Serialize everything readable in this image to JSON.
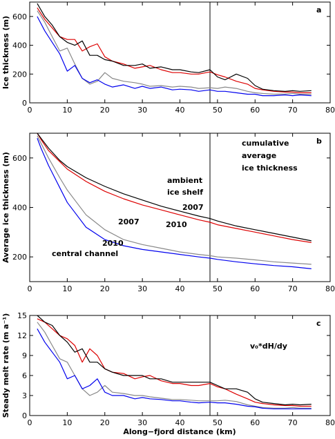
{
  "xlabel": "Along−fjord distance (km)",
  "colors": {
    "black_2007_ambient": "#000000",
    "red_2010_ambient": "#dd0000",
    "gray_2007_channel": "#888888",
    "blue_2010_channel": "#0000ee"
  },
  "chart_data": [
    {
      "type": "line",
      "panel_label": "a",
      "ylabel": "Ice thickness (m)",
      "xlim": [
        0,
        80
      ],
      "ylim": [
        0,
        700
      ],
      "xticks": [
        "0",
        "10",
        "20",
        "30",
        "40",
        "50",
        "60",
        "70",
        "80"
      ],
      "yticks": [
        "0",
        "200",
        "400",
        "600"
      ],
      "ytick_values": [
        0,
        200,
        400,
        600
      ],
      "vline_x": 48,
      "series": [
        {
          "color": "#000000",
          "x": [
            2,
            4,
            6,
            8,
            10,
            12,
            14,
            16,
            18,
            20,
            22,
            25,
            28,
            30,
            32,
            35,
            38,
            40,
            43,
            45,
            48,
            50,
            52,
            55,
            58,
            60,
            62,
            65,
            68,
            70,
            72,
            75
          ],
          "y": [
            690,
            600,
            540,
            460,
            420,
            400,
            430,
            330,
            330,
            300,
            290,
            260,
            260,
            270,
            240,
            250,
            230,
            230,
            215,
            210,
            230,
            180,
            160,
            200,
            170,
            120,
            95,
            85,
            80,
            85,
            80,
            85
          ]
        },
        {
          "color": "#dd0000",
          "x": [
            2,
            4,
            6,
            8,
            10,
            12,
            14,
            16,
            18,
            20,
            22,
            25,
            28,
            30,
            32,
            35,
            38,
            40,
            43,
            45,
            48,
            50,
            52,
            55,
            58,
            60,
            62,
            65,
            68,
            70,
            72,
            75
          ],
          "y": [
            660,
            580,
            520,
            460,
            440,
            440,
            360,
            390,
            410,
            320,
            290,
            270,
            240,
            250,
            260,
            230,
            210,
            210,
            200,
            200,
            215,
            195,
            180,
            150,
            130,
            100,
            90,
            80,
            75,
            75,
            70,
            70
          ]
        },
        {
          "color": "#888888",
          "x": [
            2,
            4,
            6,
            8,
            10,
            12,
            14,
            16,
            18,
            20,
            22,
            25,
            28,
            30,
            32,
            35,
            38,
            40,
            43,
            45,
            48,
            50,
            52,
            55,
            58,
            60,
            62,
            65,
            68,
            70,
            72,
            75
          ],
          "y": [
            640,
            560,
            460,
            360,
            380,
            270,
            170,
            130,
            150,
            210,
            170,
            150,
            140,
            130,
            115,
            120,
            110,
            115,
            110,
            100,
            105,
            100,
            110,
            100,
            80,
            70,
            65,
            60,
            62,
            65,
            60,
            60
          ]
        },
        {
          "color": "#0000ee",
          "x": [
            2,
            4,
            6,
            8,
            10,
            12,
            14,
            16,
            18,
            20,
            22,
            25,
            28,
            30,
            32,
            35,
            38,
            40,
            43,
            45,
            48,
            50,
            52,
            55,
            58,
            60,
            62,
            65,
            68,
            70,
            72,
            75
          ],
          "y": [
            600,
            500,
            420,
            340,
            220,
            260,
            170,
            140,
            160,
            130,
            110,
            125,
            100,
            115,
            100,
            110,
            90,
            95,
            90,
            80,
            90,
            80,
            80,
            70,
            60,
            60,
            50,
            50,
            55,
            50,
            55,
            50
          ]
        }
      ]
    },
    {
      "type": "line",
      "panel_label": "b",
      "ylabel": "Average ice thickness (m)",
      "xlim": [
        0,
        80
      ],
      "ylim": [
        100,
        700
      ],
      "xticks": [
        "0",
        "10",
        "20",
        "30",
        "40",
        "50",
        "60",
        "70",
        "80"
      ],
      "yticks": [
        "200",
        "400",
        "600"
      ],
      "ytick_values": [
        200,
        400,
        600
      ],
      "vline_x": 48,
      "annotations": [
        "cumulative",
        "average",
        "ice thickness",
        "ambient",
        "ice shelf",
        "2007",
        "2010",
        "2007",
        "2010",
        "central channel"
      ],
      "series": [
        {
          "color": "#000000",
          "x": [
            2,
            3,
            5,
            8,
            10,
            15,
            20,
            25,
            30,
            35,
            40,
            45,
            48,
            50,
            55,
            60,
            65,
            70,
            75
          ],
          "y": [
            700,
            680,
            640,
            590,
            565,
            520,
            485,
            455,
            430,
            405,
            385,
            365,
            355,
            345,
            325,
            310,
            295,
            280,
            265
          ]
        },
        {
          "color": "#dd0000",
          "x": [
            2,
            3,
            5,
            8,
            10,
            15,
            20,
            25,
            30,
            35,
            40,
            45,
            48,
            50,
            55,
            60,
            65,
            70,
            75
          ],
          "y": [
            700,
            675,
            630,
            585,
            555,
            505,
            465,
            435,
            410,
            390,
            370,
            350,
            340,
            330,
            315,
            300,
            285,
            270,
            258
          ]
        },
        {
          "color": "#888888",
          "x": [
            2,
            3,
            5,
            8,
            10,
            12,
            15,
            20,
            25,
            30,
            35,
            40,
            45,
            48,
            50,
            55,
            60,
            65,
            70,
            75
          ],
          "y": [
            690,
            660,
            600,
            520,
            470,
            430,
            370,
            310,
            270,
            250,
            235,
            220,
            210,
            205,
            200,
            195,
            188,
            180,
            175,
            170
          ]
        },
        {
          "color": "#0000ee",
          "x": [
            2,
            3,
            5,
            8,
            10,
            12,
            15,
            20,
            25,
            30,
            35,
            40,
            45,
            48,
            50,
            55,
            60,
            65,
            70,
            75
          ],
          "y": [
            680,
            640,
            570,
            480,
            420,
            380,
            320,
            270,
            245,
            230,
            220,
            210,
            200,
            195,
            190,
            180,
            172,
            165,
            160,
            152
          ]
        }
      ]
    },
    {
      "type": "line",
      "panel_label": "c",
      "ylabel": "Steady melt rate (m a⁻¹)",
      "xlim": [
        0,
        80
      ],
      "ylim": [
        0,
        15
      ],
      "xticks": [
        "0",
        "10",
        "20",
        "30",
        "40",
        "50",
        "60",
        "70",
        "80"
      ],
      "yticks": [
        "0",
        "3",
        "6",
        "9",
        "12",
        "15"
      ],
      "ytick_values": [
        0,
        3,
        6,
        9,
        12,
        15
      ],
      "vline_x": 48,
      "annotations": [
        "v₀*dH/dy"
      ],
      "series": [
        {
          "color": "#000000",
          "x": [
            2,
            4,
            6,
            8,
            10,
            12,
            14,
            16,
            18,
            20,
            22,
            25,
            28,
            30,
            32,
            35,
            38,
            40,
            43,
            45,
            48,
            50,
            52,
            55,
            58,
            60,
            62,
            65,
            68,
            70,
            72,
            75
          ],
          "y": [
            15,
            14,
            13.5,
            12,
            11,
            9.5,
            10,
            8,
            8,
            7,
            6.5,
            6,
            6,
            6,
            5.5,
            5.5,
            5,
            5,
            5,
            5,
            5,
            4.5,
            4,
            4,
            3.5,
            2.5,
            2,
            1.8,
            1.6,
            1.7,
            1.6,
            1.7
          ]
        },
        {
          "color": "#dd0000",
          "x": [
            2,
            4,
            6,
            8,
            10,
            12,
            14,
            16,
            18,
            20,
            22,
            25,
            28,
            30,
            32,
            35,
            38,
            40,
            43,
            45,
            48,
            50,
            52,
            55,
            58,
            60,
            62,
            65,
            68,
            70,
            72,
            75
          ],
          "y": [
            14.5,
            14,
            13,
            12,
            11.5,
            10.5,
            8,
            10,
            9,
            7,
            6.5,
            6.3,
            5.5,
            5.8,
            6,
            5.2,
            4.8,
            4.8,
            4.5,
            4.5,
            4.8,
            4.3,
            4,
            3.2,
            2.5,
            2,
            1.8,
            1.6,
            1.5,
            1.5,
            1.4,
            1.4
          ]
        },
        {
          "color": "#888888",
          "x": [
            2,
            4,
            6,
            8,
            10,
            12,
            14,
            16,
            18,
            20,
            22,
            25,
            28,
            30,
            32,
            35,
            38,
            40,
            43,
            45,
            48,
            50,
            52,
            55,
            58,
            60,
            62,
            65,
            68,
            70,
            72,
            75
          ],
          "y": [
            14,
            12.5,
            10.5,
            8.5,
            8,
            6,
            4,
            3,
            3.5,
            4.5,
            3.5,
            3.3,
            3,
            3,
            2.8,
            2.6,
            2.4,
            2.4,
            2.3,
            2.2,
            2.2,
            2.2,
            2.3,
            2.1,
            1.6,
            1.4,
            1.2,
            1.1,
            1.1,
            1.2,
            1.1,
            1.1
          ]
        },
        {
          "color": "#0000ee",
          "x": [
            2,
            4,
            6,
            8,
            10,
            12,
            14,
            16,
            18,
            20,
            22,
            25,
            28,
            30,
            32,
            35,
            38,
            40,
            43,
            45,
            48,
            50,
            52,
            55,
            58,
            60,
            62,
            65,
            68,
            70,
            72,
            75
          ],
          "y": [
            13,
            11,
            9.5,
            8,
            5.5,
            6,
            4,
            4.5,
            5.5,
            3.5,
            3,
            3,
            2.5,
            2.7,
            2.5,
            2.4,
            2.2,
            2.2,
            2,
            1.9,
            2,
            1.9,
            1.9,
            1.7,
            1.4,
            1.3,
            1.1,
            1,
            1,
            1,
            1,
            1
          ]
        }
      ]
    }
  ]
}
